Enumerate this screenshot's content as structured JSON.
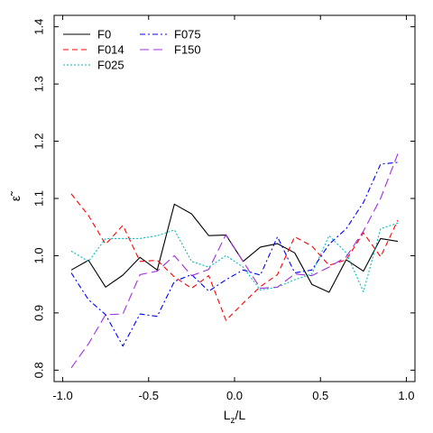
{
  "chart_data": {
    "type": "line",
    "title": "",
    "xlabel": "L",
    "xlabel_sub": "z",
    "xlabel_suffix": "/L",
    "ylabel": "ε̃",
    "xlim": [
      -1.05,
      1.05
    ],
    "ylim": [
      0.78,
      1.42
    ],
    "xticks": [
      -1.0,
      -0.5,
      0.0,
      0.5,
      1.0
    ],
    "xtick_labels": [
      "-1.0",
      "-0.5",
      "0.0",
      "0.5",
      "1.0"
    ],
    "yticks": [
      0.8,
      0.9,
      1.0,
      1.1,
      1.2,
      1.3,
      1.4
    ],
    "ytick_labels": [
      "0.8",
      "0.9",
      "1.0",
      "1.1",
      "1.2",
      "1.3",
      "1.4"
    ],
    "grid": false,
    "legend_position": "top-left",
    "x": [
      -0.95,
      -0.85,
      -0.75,
      -0.65,
      -0.55,
      -0.45,
      -0.35,
      -0.25,
      -0.15,
      -0.05,
      0.05,
      0.15,
      0.25,
      0.35,
      0.45,
      0.55,
      0.65,
      0.75,
      0.85,
      0.95
    ],
    "series": [
      {
        "name": "F0",
        "color": "#000000",
        "dash": "none",
        "values": [
          0.975,
          0.992,
          0.945,
          0.966,
          0.997,
          0.975,
          1.09,
          1.073,
          1.035,
          1.036,
          0.99,
          1.015,
          1.021,
          1.005,
          0.95,
          0.936,
          0.993,
          0.973,
          1.03,
          1.025
        ]
      },
      {
        "name": "F014",
        "color": "#ff0000",
        "dash": "6,4",
        "values": [
          1.108,
          1.07,
          1.02,
          1.053,
          0.99,
          0.992,
          0.963,
          0.943,
          0.965,
          0.887,
          0.917,
          0.946,
          0.967,
          1.033,
          1.017,
          0.983,
          0.993,
          1.04,
          0.998,
          1.062
        ]
      },
      {
        "name": "F025",
        "color": "#00c0c0",
        "dash": "2,2",
        "values": [
          1.008,
          0.99,
          1.03,
          1.03,
          1.03,
          1.035,
          1.045,
          0.99,
          0.98,
          1.0,
          0.98,
          0.94,
          0.945,
          0.958,
          0.968,
          1.035,
          1.005,
          0.937,
          1.047,
          1.057
        ]
      },
      {
        "name": "F075",
        "color": "#0000ff",
        "dash": "6,3,2,3",
        "values": [
          0.97,
          0.923,
          0.897,
          0.842,
          0.898,
          0.894,
          0.955,
          0.967,
          0.938,
          0.958,
          0.975,
          0.966,
          1.033,
          0.97,
          0.975,
          1.02,
          1.047,
          1.093,
          1.16,
          1.163
        ]
      },
      {
        "name": "F150",
        "color": "#a030e0",
        "dash": "10,5",
        "values": [
          0.804,
          0.846,
          0.897,
          0.898,
          0.967,
          0.973,
          1.0,
          0.965,
          0.976,
          1.037,
          0.99,
          0.943,
          0.945,
          0.968,
          0.965,
          0.98,
          0.998,
          1.043,
          1.1,
          1.178
        ]
      }
    ]
  }
}
